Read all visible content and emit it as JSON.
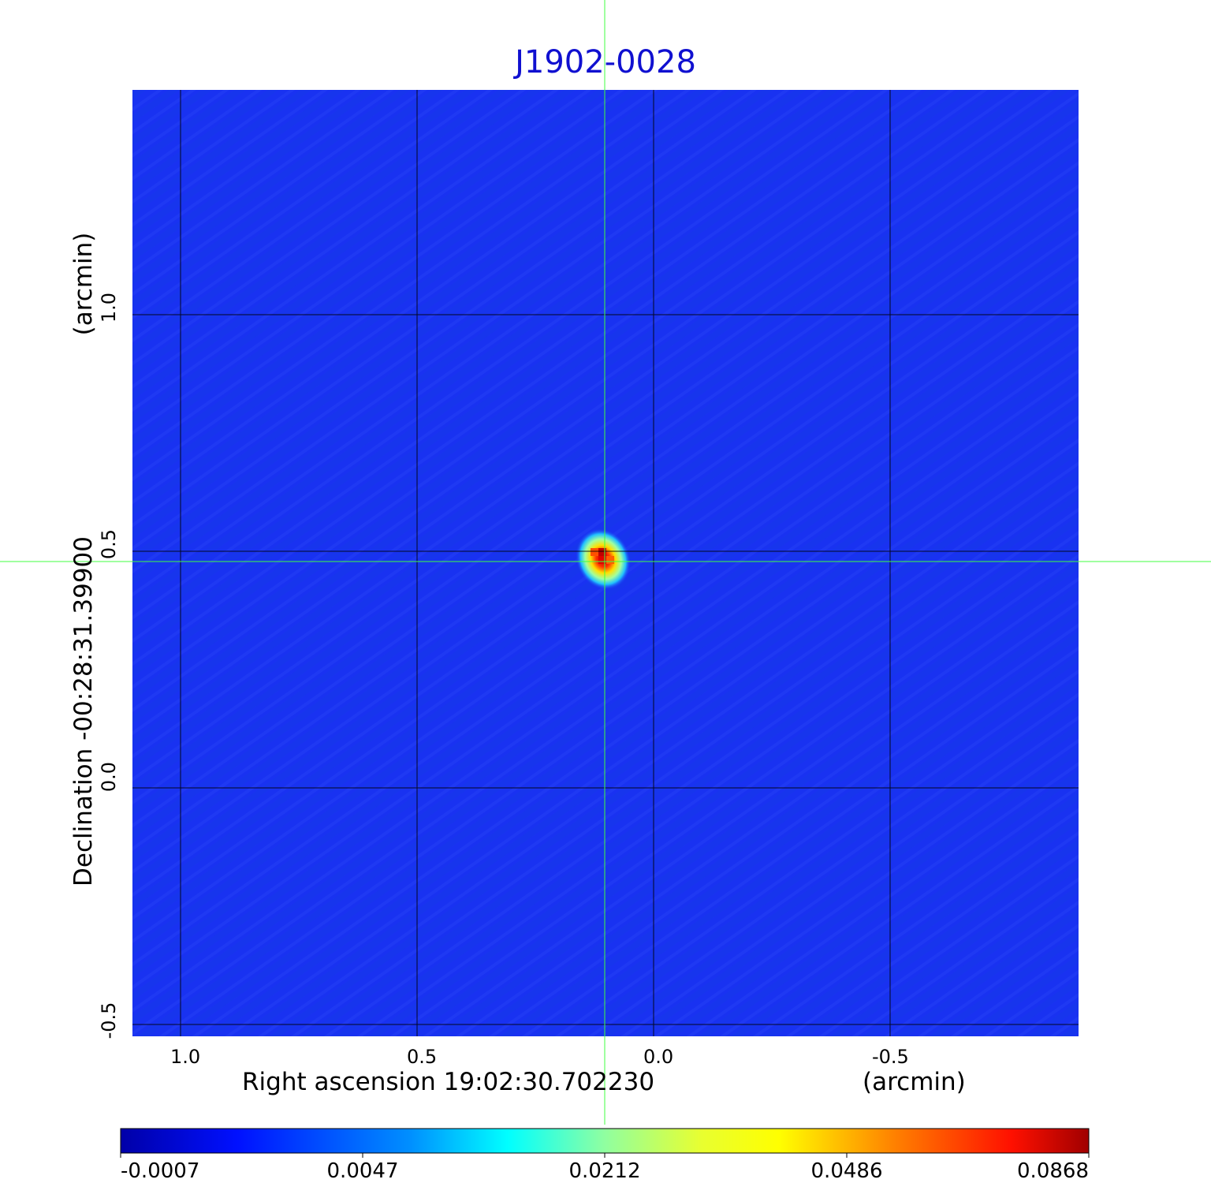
{
  "title": "J1902-0028",
  "x_axis": {
    "label": "Right ascension  19:02:30.702230",
    "unit": "(arcmin)",
    "ticks": [
      "1.0",
      "0.5",
      "0.0",
      "-0.5"
    ]
  },
  "y_axis": {
    "label": "Declination  -00:28:31.39900",
    "unit": "(arcmin)",
    "ticks": [
      "1.0",
      "0.5",
      "0.0",
      "-0.5"
    ]
  },
  "colorbar": {
    "ticks": [
      "-0.0007",
      "0.0047",
      "0.0212",
      "0.0486",
      "0.0868"
    ]
  },
  "colors": {
    "title": "#1010d0",
    "background_map": "#1830f0",
    "crosshair": "#40ff40",
    "grid": "#000000"
  },
  "colormap": "jet",
  "crosshair": true,
  "grid": true
}
